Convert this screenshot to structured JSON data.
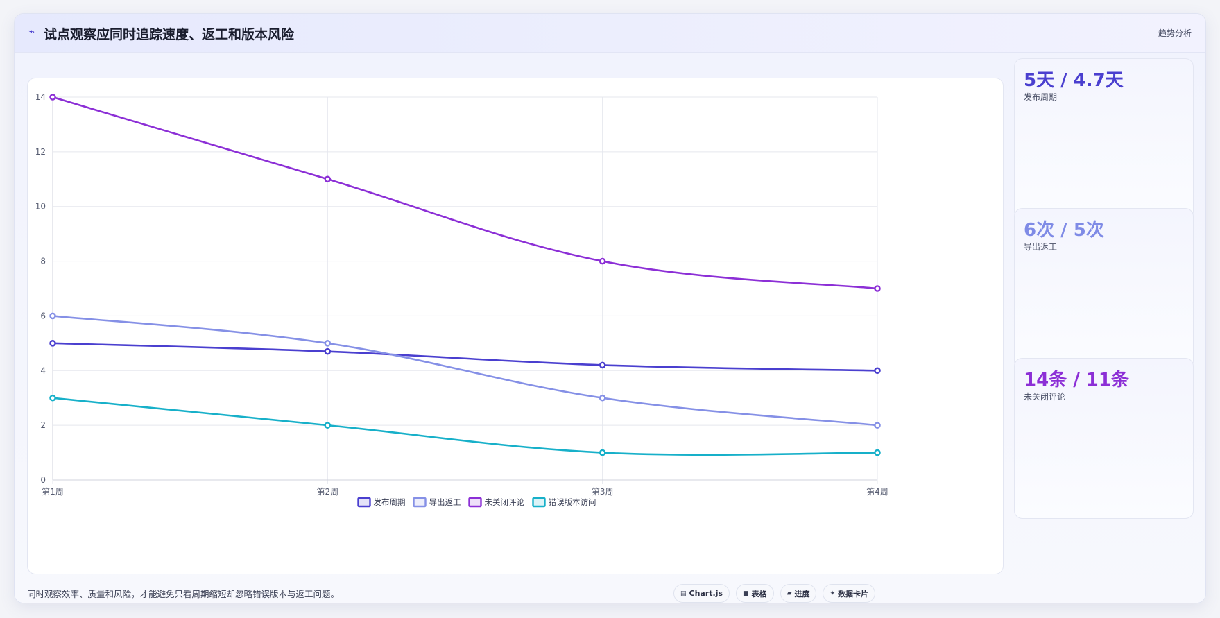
{
  "header": {
    "icon": "trend-icon",
    "title": "试点观察应同时追踪速度、返工和版本风险",
    "right_label": "趋势分析"
  },
  "kpis": [
    {
      "value": "5天 / 4.7天",
      "label": "发布周期",
      "color": "#4a3fcf"
    },
    {
      "value": "6次 / 5次",
      "label": "导出返工",
      "color": "#7f8be6"
    },
    {
      "value": "14条 / 11条",
      "label": "未关闭评论",
      "color": "#8c2fd6"
    }
  ],
  "footnote": "同时观察效率、质量和风险，才能避免只看周期缩短却忽略错误版本与返工问题。",
  "chips": [
    {
      "icon": "chart-icon",
      "label": "Chart.js"
    },
    {
      "icon": "table-icon",
      "label": "表格"
    },
    {
      "icon": "progress-icon",
      "label": "进度"
    },
    {
      "icon": "card-icon",
      "label": "数据卡片"
    }
  ],
  "chart_data": {
    "type": "line",
    "categories": [
      "第1周",
      "第2周",
      "第3周",
      "第4周"
    ],
    "ylim": [
      0,
      14
    ],
    "yticks": [
      "0",
      "2",
      "4",
      "6",
      "8",
      "10",
      "12",
      "14"
    ],
    "grid": true,
    "legend_position": "bottom",
    "series": [
      {
        "name": "发布周期",
        "values": [
          5,
          4.7,
          4.2,
          4
        ],
        "color": "#4a3fcf"
      },
      {
        "name": "导出返工",
        "values": [
          6,
          5,
          3,
          2
        ],
        "color": "#8590e6"
      },
      {
        "name": "未关闭评论",
        "values": [
          14,
          11,
          8,
          7
        ],
        "color": "#8c2fd6"
      },
      {
        "name": "错误版本访问",
        "values": [
          3,
          2,
          1,
          1
        ],
        "color": "#17b0c9"
      }
    ]
  }
}
